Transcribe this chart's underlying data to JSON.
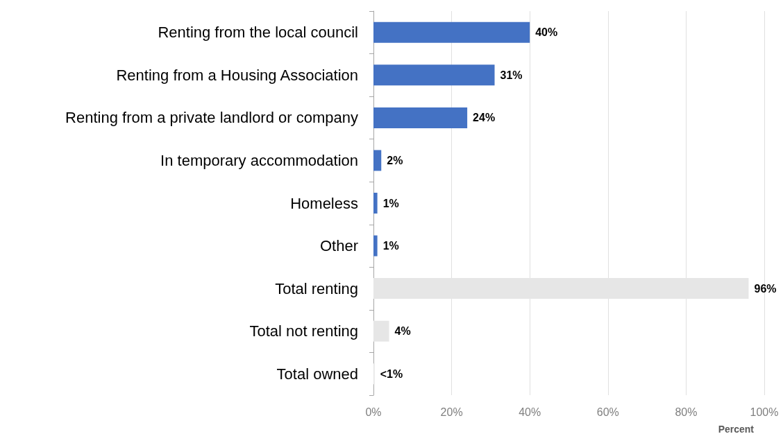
{
  "chart_data": {
    "type": "bar",
    "orientation": "horizontal",
    "xlabel": "Percent",
    "categories": [
      "Renting from the local council",
      "Renting from a Housing Association",
      "Renting from a private landlord or company",
      "In temporary accommodation",
      "Homeless",
      "Other",
      "Total renting",
      "Total not renting",
      "Total owned"
    ],
    "values": [
      40,
      31,
      24,
      2,
      1,
      1,
      96,
      4,
      0.3
    ],
    "colors": [
      "#4472c4",
      "#4472c4",
      "#4472c4",
      "#4472c4",
      "#4472c4",
      "#4472c4",
      "#e6e6e6",
      "#e6e6e6",
      "#e6e6e6"
    ],
    "value_labels": [
      "40%",
      "31%",
      "24%",
      "2%",
      "1%",
      "1%",
      "96%",
      "4%",
      "<1%"
    ],
    "xlim": [
      0,
      100
    ],
    "xticks": [
      {
        "value": 0,
        "label": "0%"
      },
      {
        "value": 20,
        "label": "20%"
      },
      {
        "value": 40,
        "label": "40%"
      },
      {
        "value": 60,
        "label": "60%"
      },
      {
        "value": 80,
        "label": "80%"
      },
      {
        "value": 100,
        "label": "100%"
      }
    ],
    "grid": "x"
  }
}
